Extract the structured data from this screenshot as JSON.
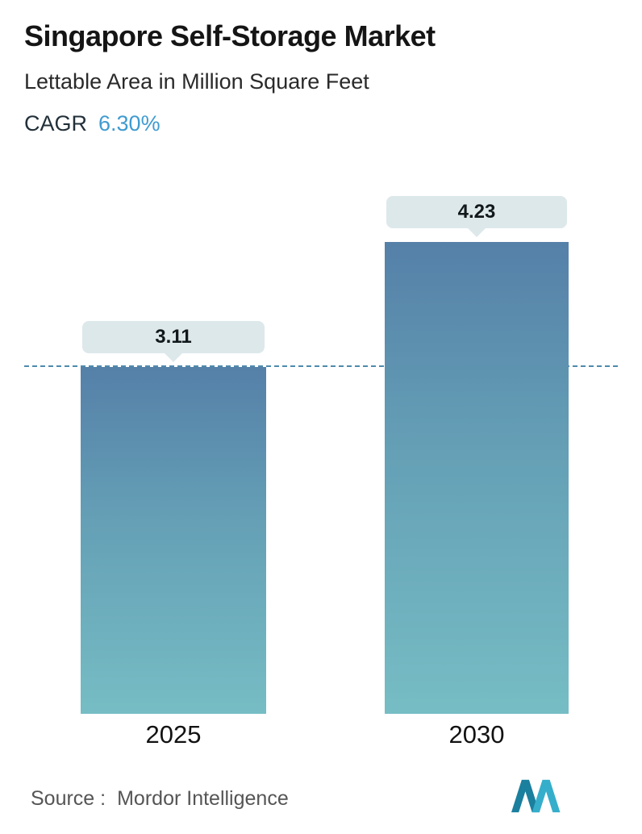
{
  "header": {
    "title": "Singapore Self-Storage Market",
    "subtitle": "Lettable Area in Million Square Feet",
    "cagr_label": "CAGR",
    "cagr_value": "6.30%"
  },
  "chart_data": {
    "type": "bar",
    "title": "Singapore Self-Storage Market",
    "subtitle": "Lettable Area in Million Square Feet",
    "cagr": "6.30%",
    "categories": [
      "2025",
      "2030"
    ],
    "values": [
      3.11,
      4.23
    ],
    "value_labels": [
      "3.11",
      "4.23"
    ],
    "xlabel": "",
    "ylabel": "",
    "ylim": [
      0,
      4.6
    ],
    "grid": false,
    "legend": "none",
    "reference_line": {
      "value": 3.11,
      "style": "dashed"
    }
  },
  "footer": {
    "source_label": "Source :",
    "source_value": "Mordor Intelligence"
  },
  "colors": {
    "bar_gradient_top": "#5580a8",
    "bar_gradient_bottom": "#76bdc4",
    "tooltip_background": "#dde8eb",
    "dashed_line": "#4e8bab",
    "cagr_value_text": "#3f9bd0",
    "logo_dark_teal": "#1b7f9e",
    "logo_light_teal": "#35aecb"
  }
}
